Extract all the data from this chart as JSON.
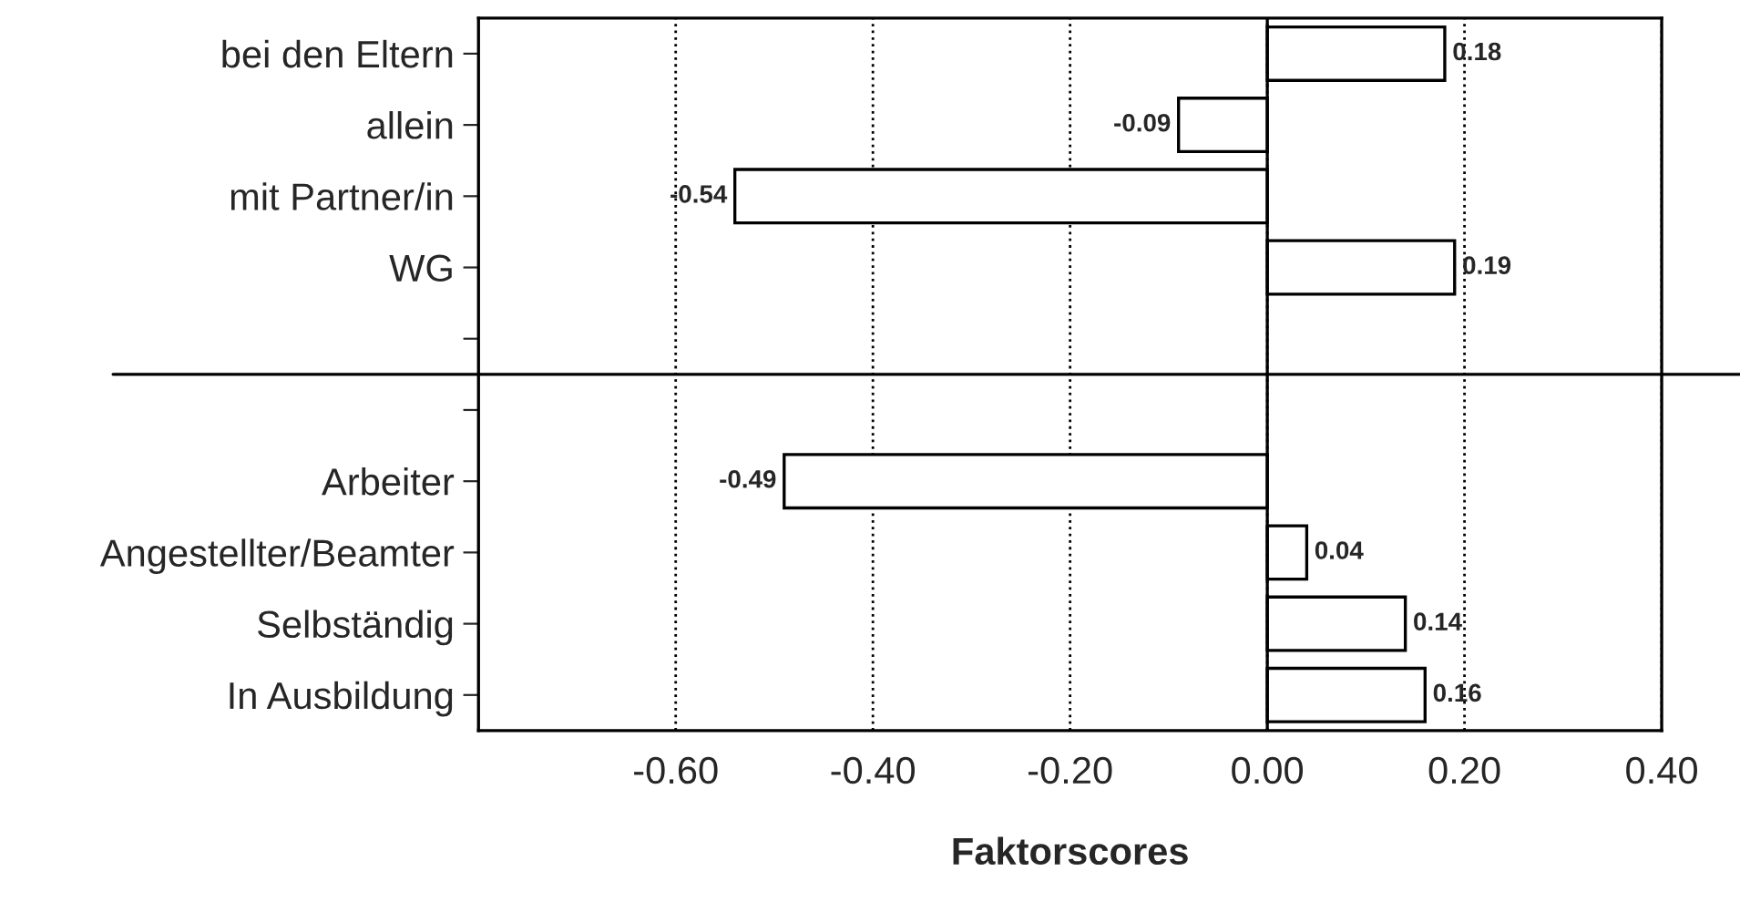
{
  "chart_data": {
    "type": "bar",
    "orientation": "horizontal",
    "xlabel": "Faktorscores",
    "categories": [
      "bei den Eltern",
      "allein",
      "mit Partner/in",
      "WG",
      null,
      null,
      "Arbeiter",
      "Angestellter/Beamter",
      "Selbständig",
      "In Ausbildung"
    ],
    "values": [
      0.18,
      -0.09,
      -0.54,
      0.19,
      null,
      null,
      -0.49,
      0.04,
      0.14,
      0.16
    ],
    "color": "#ffffff",
    "data_labels": true,
    "xlim": [
      -0.8,
      0.4
    ],
    "xticks": [
      {
        "value": -0.6,
        "label": "-0.60"
      },
      {
        "value": -0.4,
        "label": "-0.40"
      },
      {
        "value": -0.2,
        "label": "-0.20"
      },
      {
        "value": 0.0,
        "label": "0.00"
      },
      {
        "value": 0.2,
        "label": "0.20"
      },
      {
        "value": 0.4,
        "label": "0.40"
      }
    ],
    "grid": "x"
  }
}
